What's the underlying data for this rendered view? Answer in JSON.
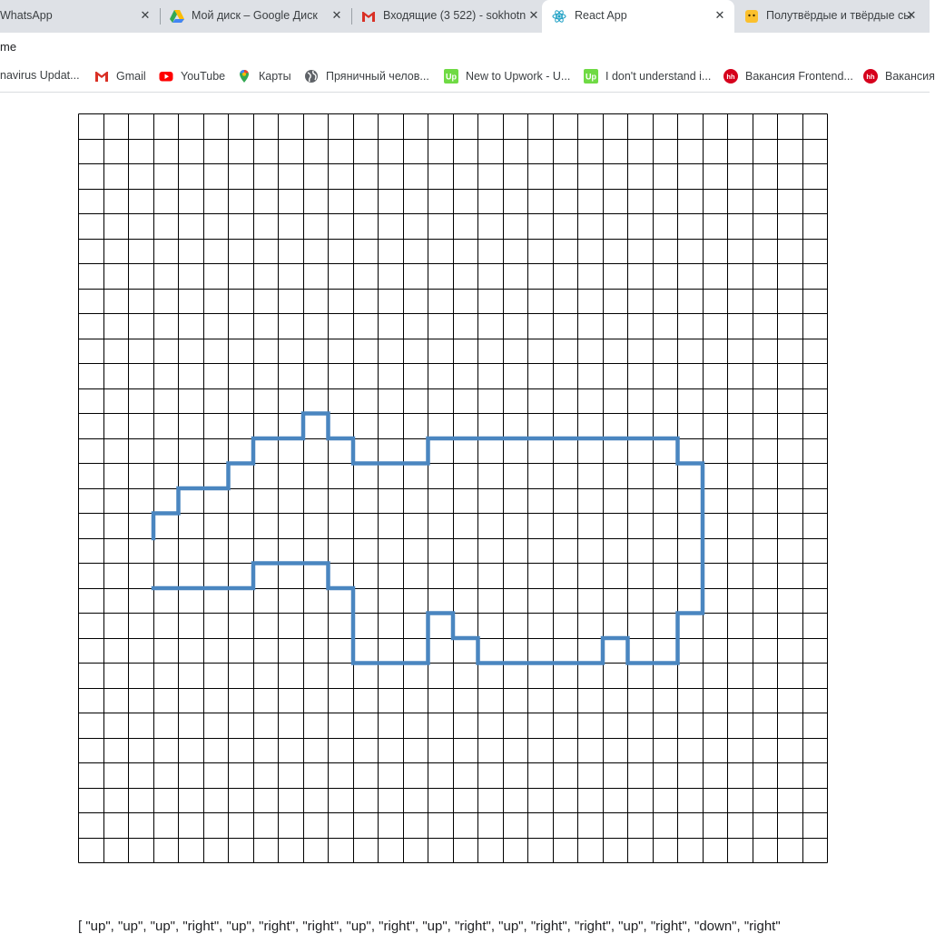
{
  "browser": {
    "tabs": [
      {
        "title": "WhatsApp",
        "active": false,
        "icon": "whatsapp-icon"
      },
      {
        "title": "Мой диск – Google Диск",
        "active": false,
        "icon": "google-drive-icon"
      },
      {
        "title": "Входящие (3 522) - sokhotn",
        "active": false,
        "icon": "gmail-icon"
      },
      {
        "title": "React App",
        "active": true,
        "icon": "react-icon"
      },
      {
        "title": "Полутвёрдые и твёрдые сы",
        "active": false,
        "icon": "yandex-zen-icon"
      }
    ],
    "address_text": "me",
    "bookmarks": [
      {
        "label": "navirus Updat...",
        "icon": "globe-icon"
      },
      {
        "label": "Gmail",
        "icon": "gmail-icon"
      },
      {
        "label": "YouTube",
        "icon": "youtube-icon"
      },
      {
        "label": "Карты",
        "icon": "maps-pin-icon"
      },
      {
        "label": "Пряничный челов...",
        "icon": "globe-icon"
      },
      {
        "label": "New to Upwork - U...",
        "icon": "upwork-icon"
      },
      {
        "label": "I don't understand i...",
        "icon": "upwork-icon"
      },
      {
        "label": "Вакансия Frontend...",
        "icon": "hh-icon"
      },
      {
        "label": "Вакансия",
        "icon": "hh-icon"
      }
    ]
  },
  "grid": {
    "cells": 30,
    "line_color": "#000000",
    "path_color": "#4a86c0",
    "start": [
      3,
      17
    ],
    "path": [
      "up",
      "right",
      "up",
      "right",
      "right",
      "up",
      "right",
      "up",
      "right",
      "right",
      "up",
      "right",
      "down",
      "right",
      "down",
      "right",
      "right",
      "right",
      "up",
      "right",
      "right",
      "right",
      "right",
      "right",
      "right",
      "right",
      "right",
      "right",
      "right",
      "down",
      "right",
      "down",
      "down",
      "down",
      "down",
      "down",
      "down",
      "left",
      "down",
      "down",
      "left",
      "left",
      "up",
      "left",
      "down",
      "left",
      "left",
      "left",
      "left",
      "left",
      "up",
      "left",
      "up",
      "left",
      "down",
      "down",
      "left",
      "left",
      "left",
      "up",
      "up",
      "up",
      "left",
      "up",
      "left",
      "left",
      "left",
      "down",
      "left",
      "left",
      "left",
      "left"
    ]
  },
  "output_text": "[ \"up\", \"up\", \"up\", \"right\", \"up\", \"right\", \"right\", \"up\", \"right\", \"up\", \"right\", \"up\", \"right\", \"right\", \"up\", \"right\", \"down\", \"right\""
}
